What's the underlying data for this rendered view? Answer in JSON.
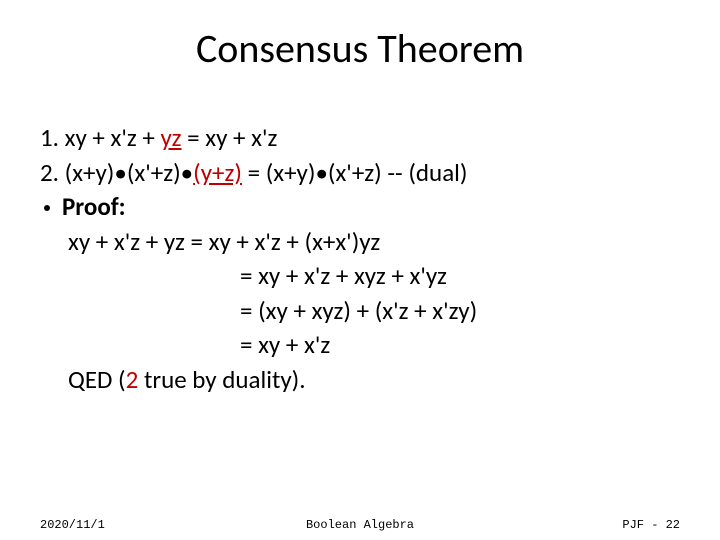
{
  "title": "Consensus Theorem",
  "lines": {
    "l1a": "1. xy + x'z + ",
    "l1b": "yz",
    "l1c": " = xy + x'z",
    "l2a": "2. (x+y)•(x'+z)•",
    "l2b": "(y+z)",
    "l2c": " = (x+y)•(x'+z)  -- (dual)",
    "proof_label": "Proof:",
    "p1": "xy + x'z + yz = xy + x'z + (x+x')yz",
    "p2": "= xy + x'z + xyz + x'yz",
    "p3": "= (xy + xyz) + (x'z + x'zy)",
    "p4": "= xy + x'z",
    "qed_a": "QED (",
    "qed_b": "2",
    "qed_c": " true by duality)."
  },
  "footer": {
    "date": "2020/11/1",
    "center": "Boolean Algebra",
    "page": "PJF - 22"
  },
  "colors": {
    "text": "#000000",
    "accent": "#bf0000",
    "background": "#ffffff"
  }
}
